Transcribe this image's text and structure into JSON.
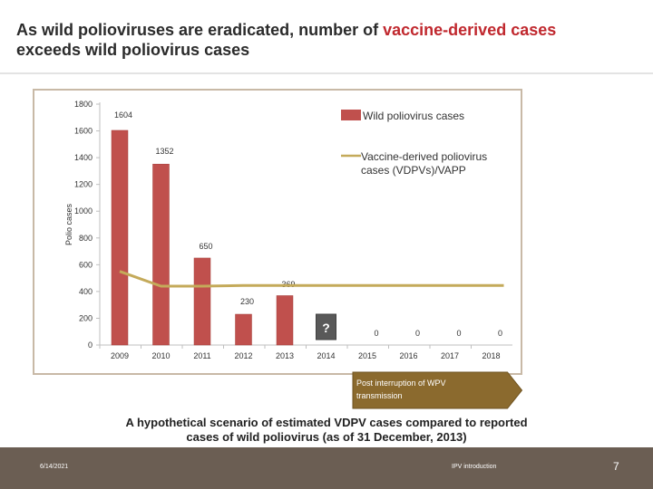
{
  "slide": {
    "title_part1": "As wild polioviruses are eradicated, number of ",
    "title_highlight": "vaccine-derived cases",
    "title_part2": " exceeds wild poliovirus cases",
    "caption_line1": "A hypothetical scenario of estimated VDPV cases compared to reported",
    "caption_line2": "cases of wild poliovirus (as of 31 December, 2013)",
    "footer_date": "6/14/2021",
    "footer_title": "IPV introduction",
    "page_number": "7"
  },
  "colors": {
    "highlight": "#c0282e",
    "bar": "#c0504d",
    "line": "#c4aa5a",
    "arrow": "#8b6a2e",
    "footer": "#6b5e53",
    "question_box": "#595959"
  },
  "chart_data": {
    "type": "bar",
    "categories": [
      "2009",
      "2010",
      "2011",
      "2012",
      "2013",
      "2014",
      "2015",
      "2016",
      "2017",
      "2018"
    ],
    "ylabel": "Polio cases",
    "ylim": [
      0,
      1800
    ],
    "yticks": [
      0,
      200,
      400,
      600,
      800,
      1000,
      1200,
      1400,
      1600,
      1800
    ],
    "grid": false,
    "legend_position": "top-right",
    "series": [
      {
        "name": "Wild poliovirus cases",
        "kind": "bar",
        "values": [
          1604,
          1352,
          650,
          230,
          369,
          null,
          0,
          0,
          0,
          0
        ],
        "data_labels": [
          "1604",
          "1352",
          "650",
          "230",
          "369",
          "",
          "0",
          "0",
          "0",
          "0"
        ]
      },
      {
        "name": "Vaccine-derived poliovirus cases (VDPVs)/VAPP",
        "kind": "line",
        "values": [
          550,
          440,
          440,
          445,
          445,
          445,
          445,
          445,
          445,
          445
        ]
      }
    ],
    "annotations": [
      {
        "text": "?",
        "category": "2014"
      },
      {
        "text": "Post interruption of WPV transmission",
        "shape": "arrow",
        "from": "2015",
        "to": "2018"
      }
    ]
  }
}
